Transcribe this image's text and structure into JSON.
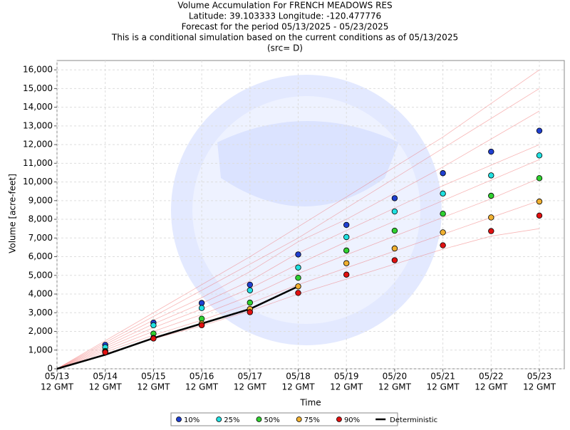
{
  "chart_data": {
    "type": "line",
    "title_lines": [
      "Volume Accumulation For FRENCH MEADOWS RES",
      "Latitude: 39.103333 Longitude: -120.477776",
      "Forecast for the period 05/13/2025 - 05/23/2025",
      "This is a conditional simulation based on the current conditions as of 05/13/2025",
      "(src= D)"
    ],
    "ylabel": "Volume [acre-feet]",
    "xlabel": "Time",
    "categories": [
      "05/13",
      "05/14",
      "05/15",
      "05/16",
      "05/17",
      "05/18",
      "05/19",
      "05/20",
      "05/21",
      "05/22",
      "05/23"
    ],
    "category_sublabel": "12 GMT",
    "ylim": [
      0,
      16500
    ],
    "yticks": [
      0,
      {
        "value": 1000,
        "label": "1,000"
      },
      {
        "value": 2000,
        "label": "2,000"
      },
      {
        "value": 3000,
        "label": "3,000"
      },
      {
        "value": 4000,
        "label": "4,000"
      },
      {
        "value": 5000,
        "label": "5,000"
      },
      {
        "value": 6000,
        "label": "6,000"
      },
      {
        "value": 7000,
        "label": "7,000"
      },
      {
        "value": 8000,
        "label": "8,000"
      },
      {
        "value": 9000,
        "label": "9,000"
      },
      {
        "value": 10000,
        "label": "10,000"
      },
      {
        "value": 11000,
        "label": "11,000"
      },
      {
        "value": 12000,
        "label": "12,000"
      },
      {
        "value": 13000,
        "label": "13,000"
      },
      {
        "value": 14000,
        "label": "14,000"
      },
      {
        "value": 15000,
        "label": "15,000"
      },
      {
        "value": 16000,
        "label": "16,000"
      }
    ],
    "grid": true,
    "legend": "bottom",
    "trace_color": "#f06060",
    "traces": [
      [
        0,
        1500,
        3000,
        4500,
        6000,
        7600,
        9200,
        10800,
        12400,
        14200,
        16000
      ],
      [
        0,
        1400,
        2800,
        4200,
        5600,
        7000,
        8600,
        10200,
        11800,
        13400,
        15000
      ],
      [
        0,
        1300,
        2600,
        3800,
        5200,
        6800,
        8000,
        9400,
        10800,
        12300,
        13800
      ],
      [
        0,
        1200,
        2400,
        3500,
        4700,
        6200,
        7400,
        8600,
        9800,
        10900,
        12000
      ],
      [
        0,
        1100,
        2200,
        3200,
        4300,
        5600,
        6800,
        7900,
        9000,
        10100,
        11200
      ],
      [
        0,
        1000,
        2000,
        2900,
        3900,
        5100,
        6100,
        7100,
        8100,
        9100,
        10200
      ],
      [
        0,
        900,
        1800,
        2600,
        3500,
        4500,
        5400,
        6300,
        7200,
        8100,
        9000
      ],
      [
        0,
        800,
        1600,
        2300,
        3100,
        4000,
        4800,
        5600,
        6400,
        7100,
        7500
      ]
    ],
    "series": [
      {
        "name": "10%",
        "color": "#1f3fd0",
        "marker": "dot",
        "values": [
          null,
          1280,
          2470,
          3520,
          4500,
          6120,
          7700,
          9130,
          10470,
          11620,
          12740
        ]
      },
      {
        "name": "25%",
        "color": "#20e0e0",
        "marker": "dot",
        "values": [
          null,
          1150,
          2330,
          3250,
          4200,
          5420,
          7050,
          8420,
          9380,
          10350,
          11420
        ]
      },
      {
        "name": "50%",
        "color": "#30d030",
        "marker": "dot",
        "values": [
          null,
          950,
          1880,
          2680,
          3540,
          4870,
          6330,
          7390,
          8300,
          9260,
          10200
        ]
      },
      {
        "name": "75%",
        "color": "#f0b030",
        "marker": "dot",
        "values": [
          null,
          900,
          1650,
          2420,
          3200,
          4410,
          5650,
          6440,
          7300,
          8100,
          8950
        ]
      },
      {
        "name": "90%",
        "color": "#e01010",
        "marker": "dot",
        "values": [
          null,
          880,
          1620,
          2330,
          3030,
          4060,
          5040,
          5810,
          6610,
          7370,
          8200
        ]
      },
      {
        "name": "Deterministic",
        "color": "#000000",
        "marker": "line",
        "values": [
          0,
          750,
          1640,
          2420,
          3200,
          4410,
          null,
          null,
          null,
          null,
          null
        ]
      }
    ]
  }
}
